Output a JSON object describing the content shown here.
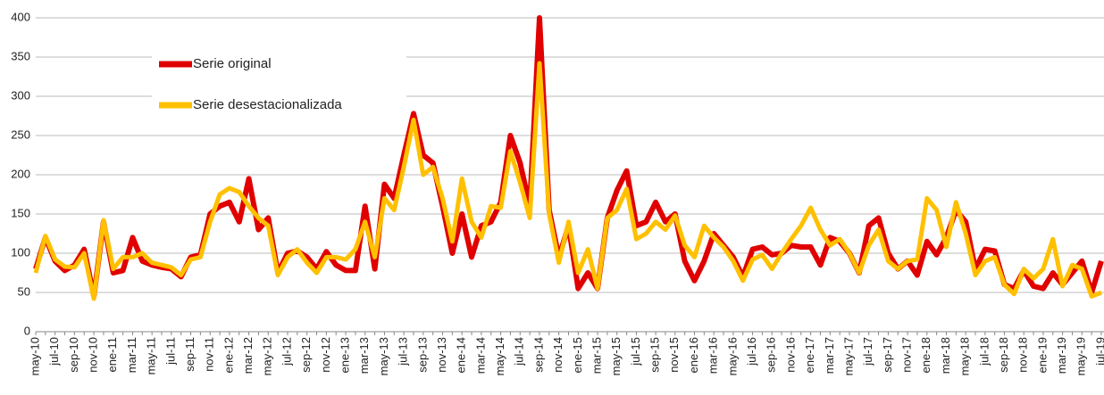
{
  "chart_data": {
    "type": "line",
    "categories": [
      "may-10",
      null,
      "jul-10",
      null,
      "sep-10",
      null,
      "nov-10",
      null,
      "ene-11",
      null,
      "mar-11",
      null,
      "may-11",
      null,
      "jul-11",
      null,
      "sep-11",
      null,
      "nov-11",
      null,
      "ene-12",
      null,
      "mar-12",
      null,
      "may-12",
      null,
      "jul-12",
      null,
      "sep-12",
      null,
      "nov-12",
      null,
      "ene-13",
      null,
      "mar-13",
      null,
      "may-13",
      null,
      "jul-13",
      null,
      "sep-13",
      null,
      "nov-13",
      null,
      "ene-14",
      null,
      "mar-14",
      null,
      "may-14",
      null,
      "jul-14",
      null,
      "sep-14",
      null,
      "nov-14",
      null,
      "ene-15",
      null,
      "mar-15",
      null,
      "may-15",
      null,
      "jul-15",
      null,
      "sep-15",
      null,
      "nov-15",
      null,
      "ene-16",
      null,
      "mar-16",
      null,
      "may-16",
      null,
      "jul-16",
      null,
      "sep-16",
      null,
      "nov-16",
      null,
      "ene-17",
      null,
      "mar-17",
      null,
      "may-17",
      null,
      "jul-17",
      null,
      "sep-17",
      null,
      "nov-17",
      null,
      "ene-18",
      null,
      "mar-18",
      null,
      "may-18",
      null,
      "jul-18",
      null,
      "sep-18",
      null,
      "nov-18",
      null,
      "ene-19",
      null,
      "mar-19",
      null,
      "may-19",
      null,
      "jul-19"
    ],
    "series": [
      {
        "name": "Serie original",
        "color": "#e00000",
        "values": [
          80,
          120,
          90,
          78,
          85,
          105,
          45,
          140,
          75,
          78,
          120,
          90,
          85,
          82,
          80,
          70,
          95,
          98,
          150,
          160,
          165,
          140,
          195,
          130,
          145,
          75,
          100,
          103,
          95,
          80,
          102,
          85,
          78,
          78,
          160,
          80,
          188,
          170,
          225,
          278,
          225,
          215,
          160,
          100,
          150,
          95,
          135,
          140,
          165,
          250,
          215,
          160,
          400,
          155,
          95,
          135,
          55,
          75,
          55,
          145,
          180,
          205,
          135,
          140,
          165,
          140,
          150,
          90,
          65,
          90,
          125,
          110,
          95,
          70,
          105,
          108,
          98,
          100,
          110,
          108,
          108,
          85,
          120,
          115,
          100,
          75,
          135,
          145,
          100,
          80,
          90,
          72,
          115,
          98,
          120,
          155,
          140,
          80,
          105,
          103,
          60,
          55,
          78,
          58,
          55,
          75,
          60,
          75,
          90,
          50,
          90
        ]
      },
      {
        "name": "Serie desestacionalizada",
        "color": "#ffc000",
        "values": [
          75,
          122,
          92,
          83,
          82,
          100,
          42,
          142,
          80,
          95,
          95,
          100,
          88,
          85,
          82,
          72,
          92,
          95,
          140,
          175,
          183,
          178,
          160,
          145,
          135,
          72,
          95,
          105,
          88,
          75,
          95,
          95,
          92,
          105,
          140,
          95,
          170,
          155,
          210,
          270,
          200,
          210,
          170,
          115,
          195,
          140,
          120,
          160,
          158,
          230,
          190,
          145,
          342,
          150,
          88,
          140,
          75,
          105,
          55,
          145,
          155,
          182,
          118,
          125,
          140,
          130,
          148,
          110,
          95,
          135,
          120,
          108,
          90,
          65,
          92,
          98,
          80,
          100,
          118,
          135,
          158,
          130,
          110,
          118,
          100,
          75,
          110,
          130,
          90,
          80,
          90,
          92,
          170,
          155,
          108,
          165,
          125,
          72,
          90,
          95,
          60,
          48,
          80,
          68,
          80,
          118,
          58,
          85,
          80,
          45,
          50
        ]
      }
    ],
    "ylim": [
      0,
      400
    ],
    "yticks": [
      0,
      50,
      100,
      150,
      200,
      250,
      300,
      350,
      400
    ],
    "grid": true
  }
}
